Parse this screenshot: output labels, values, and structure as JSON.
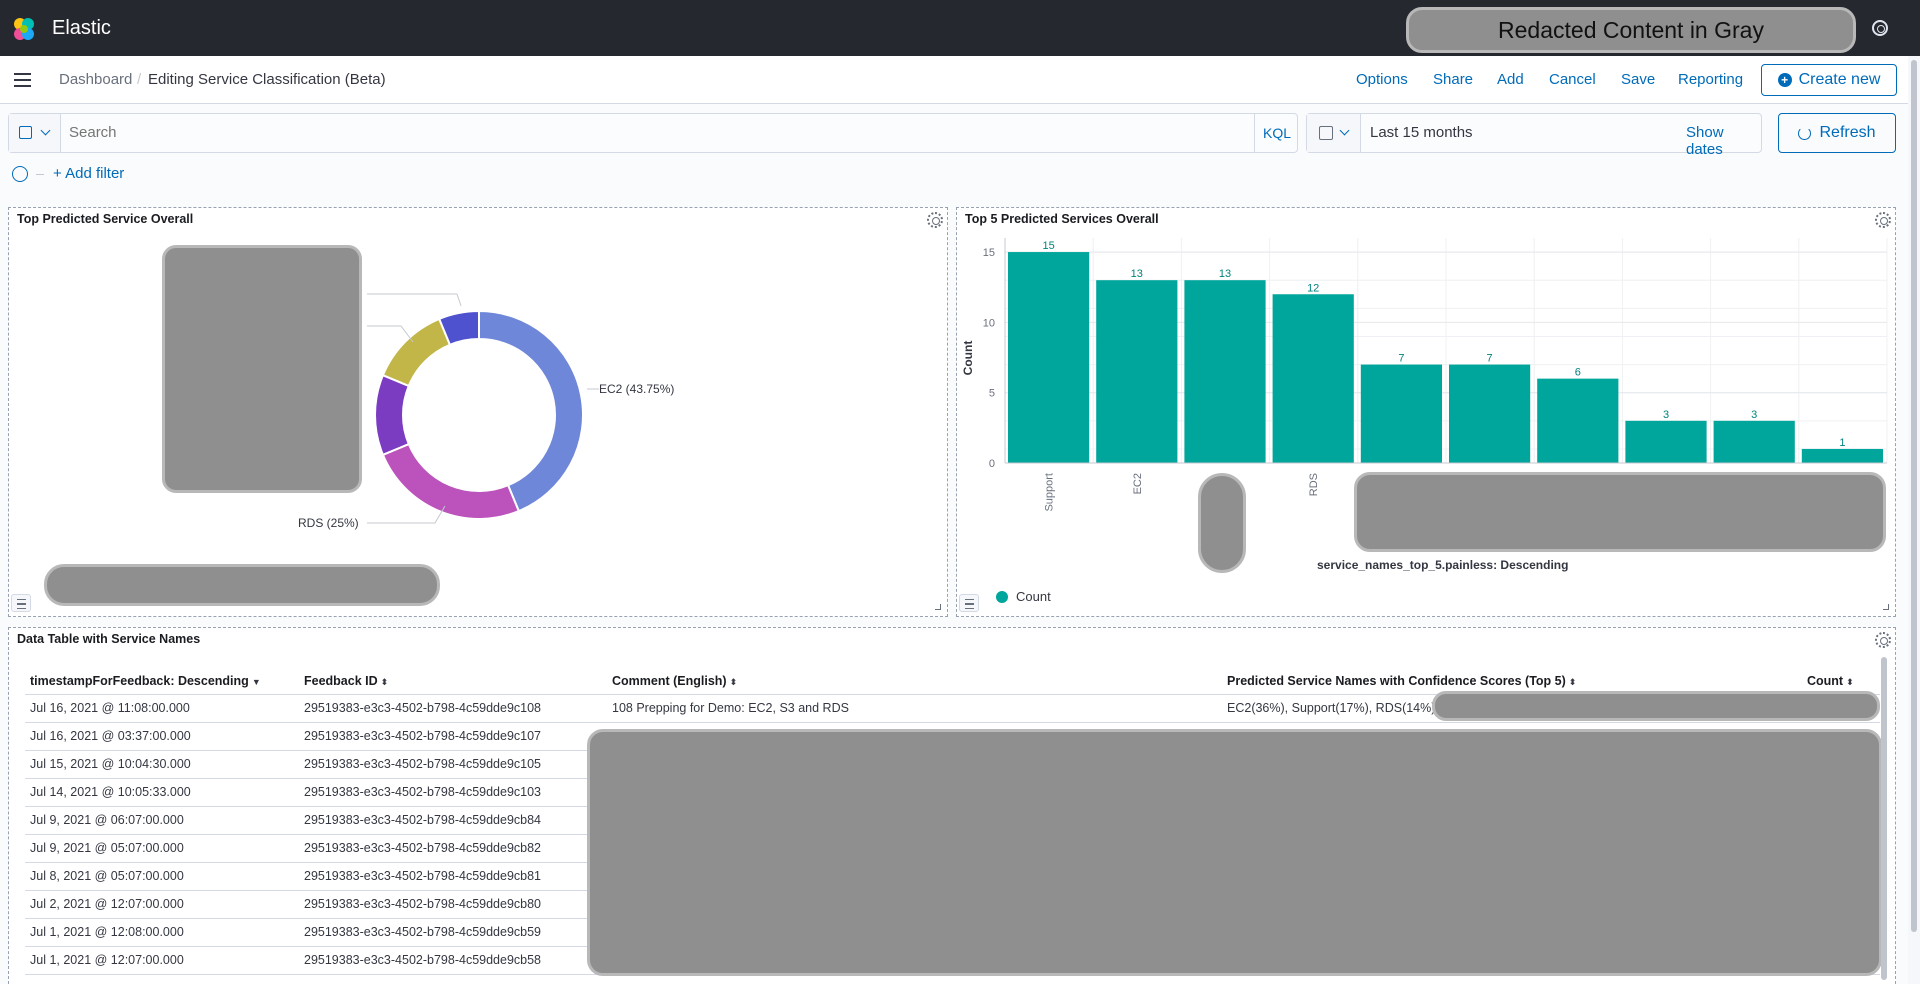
{
  "app": {
    "brand": "Elastic",
    "redacted_banner": "Redacted Content in Gray"
  },
  "breadcrumb": {
    "root": "Dashboard",
    "current": "Editing Service Classification (Beta)"
  },
  "nav_actions": [
    "Options",
    "Share",
    "Add",
    "Cancel",
    "Save",
    "Reporting"
  ],
  "create_new_label": "Create new",
  "query": {
    "placeholder": "Search",
    "language": "KQL"
  },
  "time": {
    "range": "Last 15 months",
    "show_dates": "Show dates",
    "refresh": "Refresh"
  },
  "add_filter": "+ Add filter",
  "panels": {
    "donut_title": "Top Predicted Service Overall",
    "bar_title": "Top 5 Predicted Services Overall",
    "table_title": "Data Table with Service Names"
  },
  "chart_data": [
    {
      "type": "pie",
      "title": "Top Predicted Service Overall",
      "donut": true,
      "slices": [
        {
          "label": "EC2 (43.75%)",
          "value": 43.75,
          "color": "#6f87d8"
        },
        {
          "label": "RDS (25%)",
          "value": 25,
          "color": "#bc52bc"
        },
        {
          "label": "",
          "value": 12.5,
          "color": "#7b3cc2"
        },
        {
          "label": "",
          "value": 12.5,
          "color": "#c3b649"
        },
        {
          "label": "",
          "value": 6.25,
          "color": "#4f52cf"
        }
      ]
    },
    {
      "type": "bar",
      "title": "Top 5 Predicted Services Overall",
      "categories": [
        "Support",
        "EC2",
        "",
        "RDS",
        "",
        "",
        "",
        "",
        "",
        ""
      ],
      "values": [
        15,
        13,
        13,
        12,
        7,
        7,
        6,
        3,
        3,
        1
      ],
      "series": [
        {
          "name": "Count",
          "values": [
            15,
            13,
            13,
            12,
            7,
            7,
            6,
            3,
            3,
            1
          ]
        }
      ],
      "ylabel": "Count",
      "xlabel": "service_names_top_5.painless: Descending",
      "yticks": [
        0,
        5,
        10,
        15
      ],
      "ylim": [
        0,
        16
      ],
      "color": "#00a69b",
      "legend": "bottom-left"
    }
  ],
  "table": {
    "columns": [
      "timestampForFeedback: Descending",
      "Feedback ID",
      "Comment (English)",
      "Predicted Service Names with Confidence Scores (Top 5)",
      "Count"
    ],
    "rows": [
      [
        "Jul 16, 2021 @ 11:08:00.000",
        "29519383-e3c3-4502-b798-4c59dde9c108",
        "108 Prepping for Demo: EC2, S3 and RDS",
        "EC2(36%), Support(17%), RDS(14%), ",
        ""
      ],
      [
        "Jul 16, 2021 @ 03:37:00.000",
        "29519383-e3c3-4502-b798-4c59dde9c107",
        "",
        "",
        ""
      ],
      [
        "Jul 15, 2021 @ 10:04:30.000",
        "29519383-e3c3-4502-b798-4c59dde9c105",
        "",
        "",
        ""
      ],
      [
        "Jul 14, 2021 @ 10:05:33.000",
        "29519383-e3c3-4502-b798-4c59dde9c103",
        "",
        "",
        ""
      ],
      [
        "Jul 9, 2021 @ 06:07:00.000",
        "29519383-e3c3-4502-b798-4c59dde9cb84",
        "",
        "",
        ""
      ],
      [
        "Jul 9, 2021 @ 05:07:00.000",
        "29519383-e3c3-4502-b798-4c59dde9cb82",
        "",
        "",
        ""
      ],
      [
        "Jul 8, 2021 @ 05:07:00.000",
        "29519383-e3c3-4502-b798-4c59dde9cb81",
        "",
        "",
        ""
      ],
      [
        "Jul 2, 2021 @ 12:07:00.000",
        "29519383-e3c3-4502-b798-4c59dde9cb80",
        "",
        "",
        ""
      ],
      [
        "Jul 1, 2021 @ 12:08:00.000",
        "29519383-e3c3-4502-b798-4c59dde9cb59",
        "",
        "",
        ""
      ],
      [
        "Jul 1, 2021 @ 12:07:00.000",
        "29519383-e3c3-4502-b798-4c59dde9cb58",
        "",
        "",
        ""
      ]
    ]
  }
}
